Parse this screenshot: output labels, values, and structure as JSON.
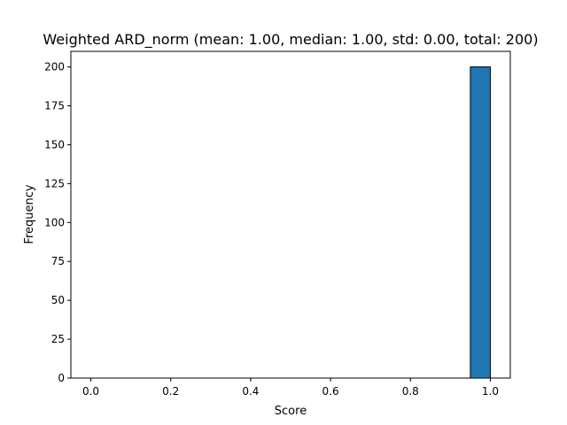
{
  "chart_data": {
    "type": "bar",
    "title": "Weighted ARD_norm (mean: 1.00, median: 1.00, std: 0.00, total: 200)",
    "xlabel": "Score",
    "ylabel": "Frequency",
    "xlim": [
      -0.05,
      1.05
    ],
    "ylim": [
      0,
      210
    ],
    "xticks": [
      "0.0",
      "0.2",
      "0.4",
      "0.6",
      "0.8",
      "1.0"
    ],
    "yticks": [
      "0",
      "25",
      "50",
      "75",
      "100",
      "125",
      "150",
      "175",
      "200"
    ],
    "bins": [
      {
        "x0": 0.95,
        "x1": 1.0,
        "count": 200
      }
    ],
    "bar_color": "#1f77b4",
    "edge_color": "#000000",
    "grid": false,
    "legend": "none"
  }
}
